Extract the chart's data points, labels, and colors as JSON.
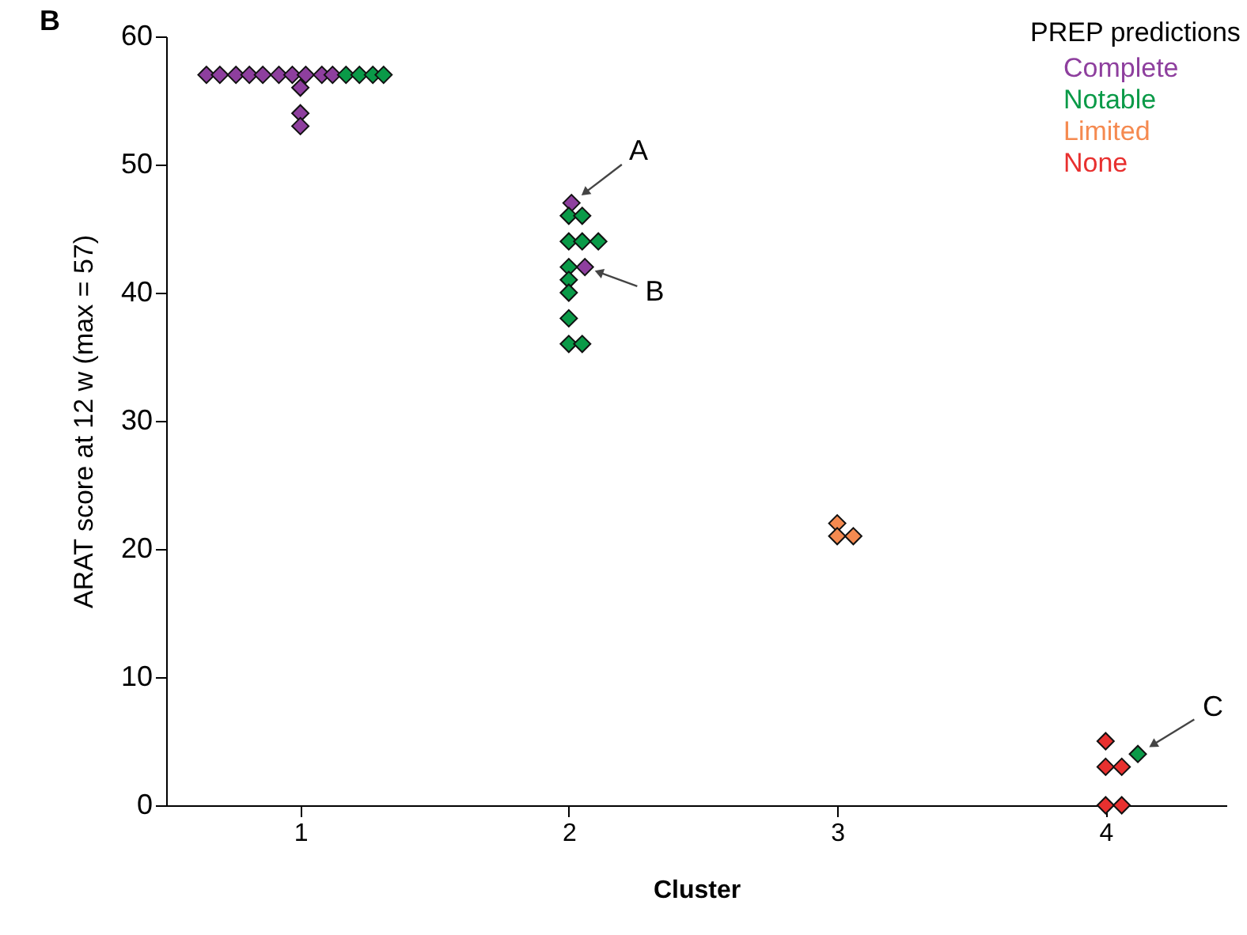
{
  "chart_data": {
    "type": "scatter",
    "title": "B",
    "xlabel": "Cluster",
    "ylabel": "ARAT score at 12 w (max = 57)",
    "legend_title": "PREP predictions",
    "xlim": [
      0.5,
      4.45
    ],
    "xticks": [
      1,
      2,
      3,
      4
    ],
    "ylim": [
      0,
      60
    ],
    "yticks": [
      0,
      10,
      20,
      30,
      40,
      50,
      60
    ],
    "marker": "diamond",
    "legend": "top right",
    "grid": false,
    "series": [
      {
        "name": "Complete",
        "color": "#8e3f9e",
        "x": [
          0.65,
          0.7,
          0.76,
          0.81,
          0.86,
          0.92,
          0.97,
          1.02,
          1.08,
          1.12,
          1.0,
          1.0,
          1.0,
          2.01,
          2.06
        ],
        "values": [
          57,
          57,
          57,
          57,
          57,
          57,
          57,
          57,
          57,
          57,
          56,
          54,
          53,
          47,
          42
        ]
      },
      {
        "name": "Notable",
        "color": "#0a9a48",
        "x": [
          1.17,
          1.22,
          1.27,
          1.31,
          2.0,
          2.05,
          2.0,
          2.05,
          2.11,
          2.0,
          2.0,
          2.0,
          2.0,
          2.0,
          2.05,
          4.12
        ],
        "values": [
          57,
          57,
          57,
          57,
          46,
          46,
          44,
          44,
          44,
          42,
          41,
          40,
          38,
          36,
          36,
          4
        ]
      },
      {
        "name": "Limited",
        "color": "#f58a50",
        "x": [
          3.0,
          3.0,
          3.06
        ],
        "values": [
          22,
          21,
          21
        ]
      },
      {
        "name": "None",
        "color": "#e8302f",
        "x": [
          4.0,
          4.0,
          4.06,
          4.0,
          4.06
        ],
        "values": [
          5,
          3,
          3,
          0,
          0
        ]
      }
    ],
    "annotations": [
      {
        "text": "A",
        "x": 2.01,
        "y": 47
      },
      {
        "text": "B",
        "x": 2.06,
        "y": 42
      },
      {
        "text": "C",
        "x": 4.12,
        "y": 4
      }
    ]
  }
}
